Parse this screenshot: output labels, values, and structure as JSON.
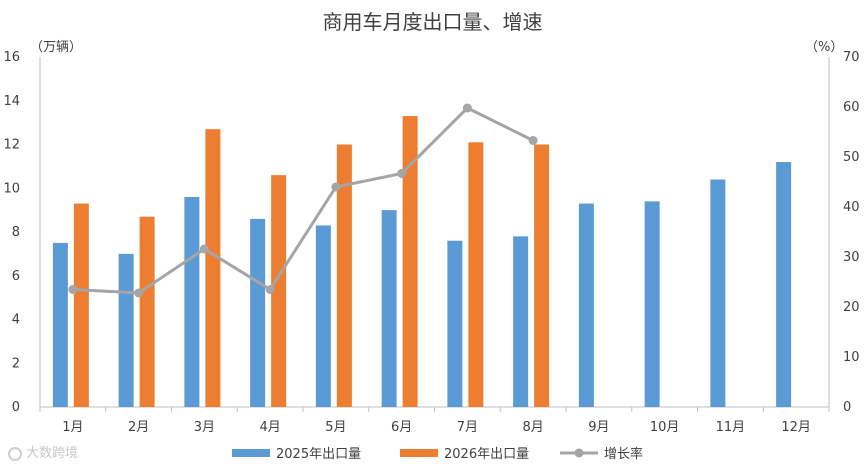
{
  "chart_data": {
    "type": "bar",
    "title": "商用车月度出口量、增速",
    "left_unit": "（万辆）",
    "right_unit": "（%）",
    "categories": [
      "1月",
      "2月",
      "3月",
      "4月",
      "5月",
      "6月",
      "7月",
      "8月",
      "9月",
      "10月",
      "11月",
      "12月"
    ],
    "series": [
      {
        "name": "2025年出口量",
        "type": "bar",
        "axis": "left",
        "color": "#5b9bd5",
        "values": [
          7.5,
          7.0,
          9.6,
          8.6,
          8.3,
          9.0,
          7.6,
          7.8,
          9.3,
          9.4,
          10.4,
          11.2
        ]
      },
      {
        "name": "2026年出口量",
        "type": "bar",
        "axis": "left",
        "color": "#ed7d31",
        "values": [
          9.3,
          8.7,
          12.7,
          10.6,
          12.0,
          13.3,
          12.1,
          12.0,
          null,
          null,
          null,
          null
        ]
      },
      {
        "name": "增长率",
        "type": "line",
        "axis": "right",
        "color": "#a5a5a5",
        "values": [
          23.5,
          22.8,
          31.6,
          23.5,
          44.0,
          46.7,
          59.8,
          53.3,
          null,
          null,
          null,
          null
        ]
      }
    ],
    "y_left": {
      "min": 0,
      "max": 16,
      "ticks": [
        0,
        2,
        4,
        6,
        8,
        10,
        12,
        14,
        16
      ]
    },
    "y_right": {
      "min": 0,
      "max": 70,
      "ticks": [
        0,
        10,
        20,
        30,
        40,
        50,
        60,
        70
      ]
    },
    "grid": false,
    "legend_position": "bottom"
  },
  "watermark": "大数跨境"
}
